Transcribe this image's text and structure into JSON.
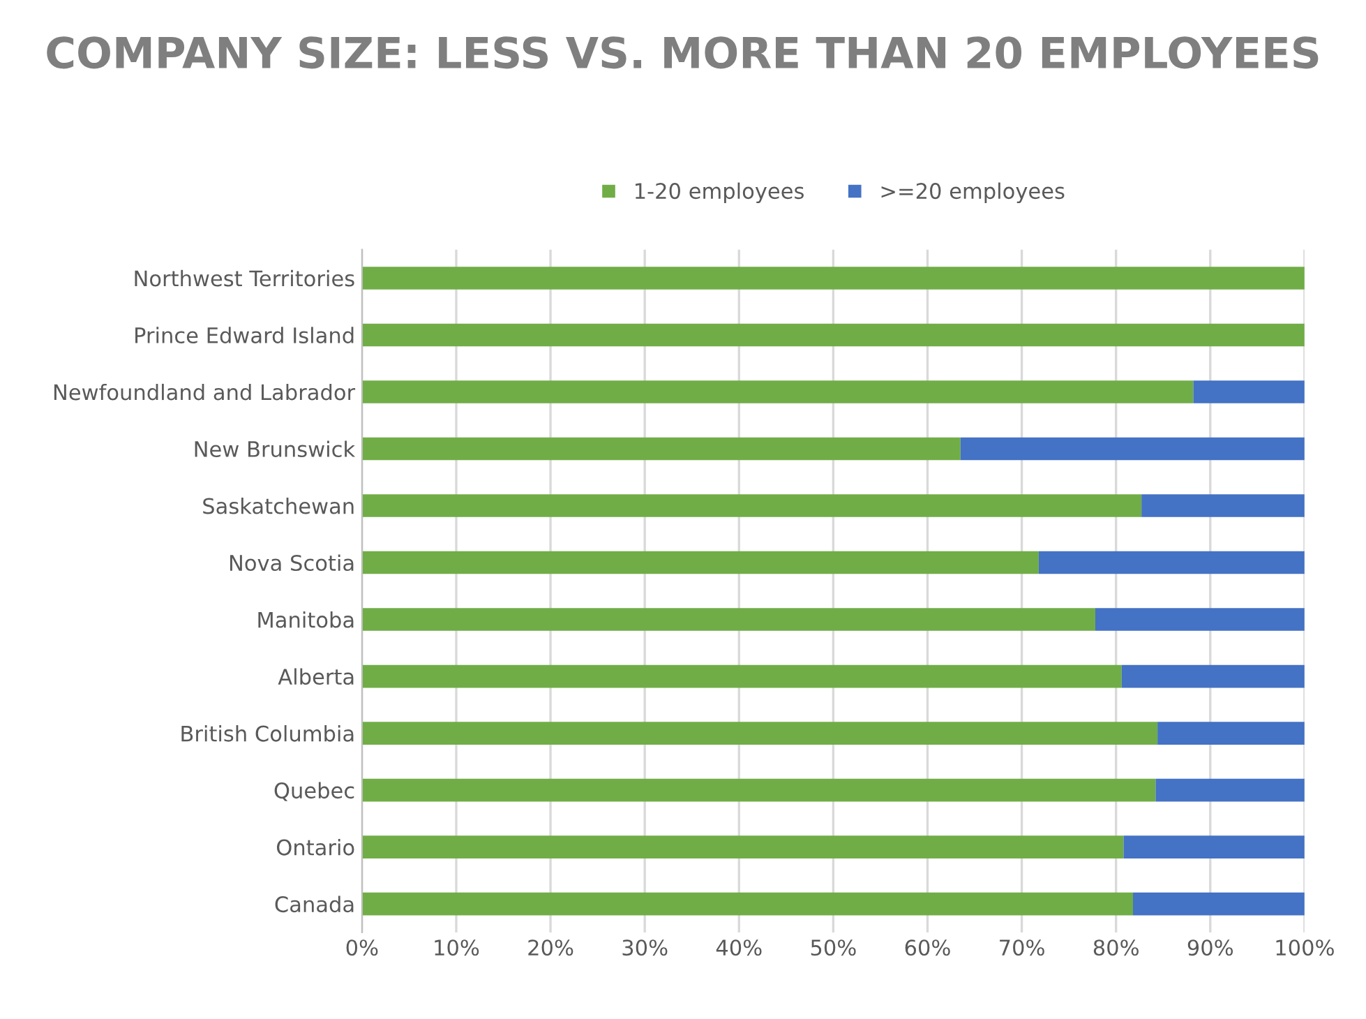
{
  "chart_data": {
    "type": "bar",
    "orientation": "horizontal",
    "stacked": true,
    "title": "COMPANY SIZE: LESS VS. MORE THAN 20 EMPLOYEES",
    "categories": [
      "Northwest Territories",
      "Prince Edward Island",
      "Newfoundland and Labrador",
      "New Brunswick",
      "Saskatchewan",
      "Nova Scotia",
      "Manitoba",
      "Alberta",
      "British Columbia",
      "Quebec",
      "Ontario",
      "Canada"
    ],
    "series": [
      {
        "name": "1-20 employees",
        "color": "#70ad47",
        "values": [
          100,
          100,
          88.2,
          63.5,
          82.7,
          71.8,
          77.8,
          80.6,
          84.4,
          84.2,
          80.8,
          81.8
        ]
      },
      {
        "name": ">=20 employees",
        "color": "#4472c4",
        "values": [
          0,
          0,
          11.8,
          36.5,
          17.3,
          28.2,
          22.2,
          19.4,
          15.6,
          15.8,
          19.2,
          18.2
        ]
      }
    ],
    "xlim": [
      0,
      100
    ],
    "xticks": [
      {
        "value": 0,
        "label": "0%"
      },
      {
        "value": 10,
        "label": "10%"
      },
      {
        "value": 20,
        "label": "20%"
      },
      {
        "value": 30,
        "label": "30%"
      },
      {
        "value": 40,
        "label": "40%"
      },
      {
        "value": 50,
        "label": "50%"
      },
      {
        "value": 60,
        "label": "60%"
      },
      {
        "value": 70,
        "label": "70%"
      },
      {
        "value": 80,
        "label": "80%"
      },
      {
        "value": 90,
        "label": "90%"
      },
      {
        "value": 100,
        "label": "100%"
      }
    ],
    "grid": "x",
    "legend": "top"
  }
}
